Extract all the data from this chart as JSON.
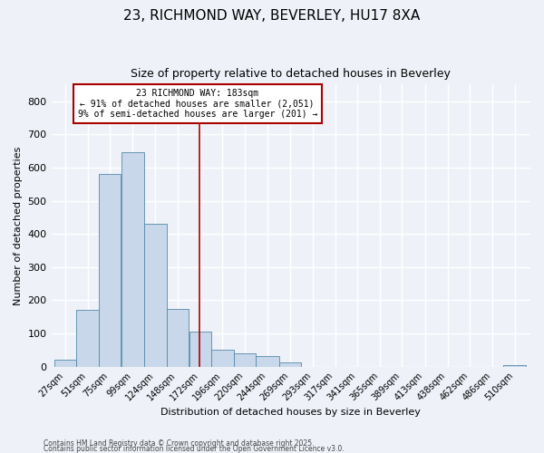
{
  "title1": "23, RICHMOND WAY, BEVERLEY, HU17 8XA",
  "title2": "Size of property relative to detached houses in Beverley",
  "xlabel": "Distribution of detached houses by size in Beverley",
  "ylabel": "Number of detached properties",
  "bin_labels": [
    "27sqm",
    "51sqm",
    "75sqm",
    "99sqm",
    "124sqm",
    "148sqm",
    "172sqm",
    "196sqm",
    "220sqm",
    "244sqm",
    "269sqm",
    "293sqm",
    "317sqm",
    "341sqm",
    "365sqm",
    "389sqm",
    "413sqm",
    "438sqm",
    "462sqm",
    "486sqm",
    "510sqm"
  ],
  "bin_lefts": [
    27,
    51,
    75,
    99,
    124,
    148,
    172,
    196,
    220,
    244,
    269,
    293,
    317,
    341,
    365,
    389,
    413,
    438,
    462,
    486,
    510
  ],
  "bin_widths": [
    24,
    24,
    24,
    25,
    24,
    24,
    24,
    24,
    24,
    25,
    24,
    24,
    24,
    24,
    24,
    24,
    25,
    24,
    24,
    24,
    24
  ],
  "heights": [
    20,
    170,
    580,
    645,
    430,
    175,
    105,
    50,
    40,
    33,
    12,
    0,
    0,
    0,
    0,
    0,
    0,
    0,
    0,
    0,
    5
  ],
  "bar_color": "#c8d8ea",
  "bar_edge_color": "#5588aa",
  "vline_x": 183,
  "vline_color": "#aa0000",
  "annotation_title": "23 RICHMOND WAY: 183sqm",
  "annotation_line1": "← 91% of detached houses are smaller (2,051)",
  "annotation_line2": "9% of semi-detached houses are larger (201) →",
  "annotation_box_facecolor": "#ffffff",
  "annotation_box_edgecolor": "#aa0000",
  "ylim": [
    0,
    850
  ],
  "yticks": [
    0,
    100,
    200,
    300,
    400,
    500,
    600,
    700,
    800
  ],
  "footer1": "Contains HM Land Registry data © Crown copyright and database right 2025.",
  "footer2": "Contains public sector information licensed under the Open Government Licence v3.0.",
  "bg_color": "#eef2f8",
  "grid_color": "#ffffff",
  "title1_fontsize": 11,
  "title2_fontsize": 9,
  "xlabel_fontsize": 8,
  "ylabel_fontsize": 8,
  "tick_fontsize": 7,
  "annotation_fontsize": 7,
  "footer_fontsize": 5.5
}
